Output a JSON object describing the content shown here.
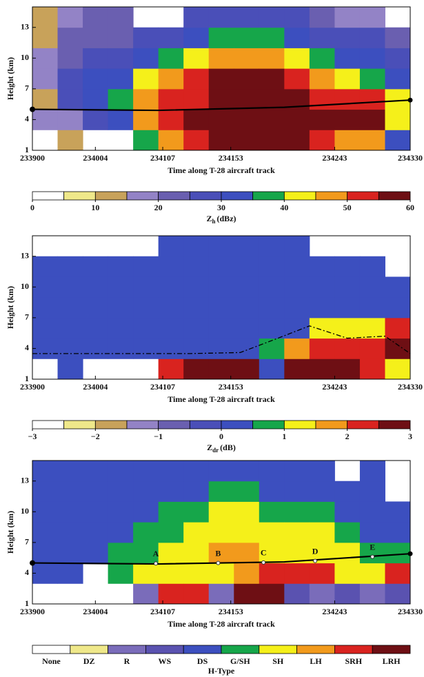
{
  "chart_data": [
    {
      "type": "heatmap",
      "ylabel": "Height (km)",
      "xlabel": "Time along T-28 aircraft track",
      "xlim": [
        0,
        60
      ],
      "xticks": [
        {
          "value": 0,
          "label": "233900"
        },
        {
          "value": 10,
          "label": "234004"
        },
        {
          "value": 20.7,
          "label": "234107"
        },
        {
          "value": 31.5,
          "label": "234153"
        },
        {
          "value": 48,
          "label": "234243"
        },
        {
          "value": 60,
          "label": "234330"
        }
      ],
      "ylim": [
        1,
        15
      ],
      "yticks": [
        1,
        4,
        7,
        10,
        13
      ],
      "xbins": [
        0,
        4,
        8,
        12,
        16,
        20,
        24,
        28,
        32,
        36,
        40,
        44,
        48,
        52,
        56,
        60
      ],
      "ybins": [
        1,
        3,
        5,
        7,
        9,
        11,
        13,
        15
      ],
      "z": [
        [
          null,
          15,
          10,
          15,
          15,
          10,
          10
        ],
        [
          10,
          15,
          25,
          25,
          20,
          20,
          15
        ],
        [
          null,
          25,
          30,
          30,
          25,
          20,
          20
        ],
        [
          null,
          30,
          35,
          30,
          25,
          20,
          20
        ],
        [
          35,
          45,
          45,
          40,
          30,
          25,
          null
        ],
        [
          45,
          50,
          50,
          45,
          35,
          25,
          null
        ],
        [
          50,
          55,
          50,
          50,
          40,
          30,
          25
        ],
        [
          55,
          58,
          58,
          55,
          45,
          35,
          25
        ],
        [
          58,
          58,
          58,
          55,
          45,
          35,
          25
        ],
        [
          58,
          58,
          58,
          55,
          45,
          35,
          25
        ],
        [
          55,
          58,
          55,
          50,
          40,
          30,
          25
        ],
        [
          50,
          55,
          50,
          45,
          35,
          25,
          20
        ],
        [
          45,
          55,
          50,
          40,
          30,
          25,
          15
        ],
        [
          45,
          58,
          50,
          35,
          30,
          25,
          15
        ],
        [
          30,
          40,
          40,
          30,
          25,
          20,
          null
        ]
      ],
      "levels": [
        0,
        5,
        10,
        15,
        20,
        25,
        30,
        35,
        40,
        45,
        50,
        55,
        60
      ],
      "colors": [
        "#ffffff",
        "#efe88a",
        "#c8a25a",
        "#9383c6",
        "#6a5fb0",
        "#4a4fb8",
        "#3c4fbf",
        "#16a64a",
        "#f5f01a",
        "#f29a1c",
        "#d9231f",
        "#6e0f14"
      ],
      "cbar_ticks": [
        0,
        10,
        20,
        30,
        40,
        50,
        60
      ],
      "colorbar_label": {
        "base": "Z",
        "sub": "h",
        "rest": "(dBz)"
      },
      "track": {
        "x": [
          0,
          20,
          40,
          60
        ],
        "y": [
          5,
          4.9,
          5.2,
          5.9
        ],
        "style": "solid"
      }
    },
    {
      "type": "heatmap",
      "ylabel": "Height (km)",
      "xlabel": "Time along T-28 aircraft track",
      "xlim": [
        0,
        60
      ],
      "xticks": [
        {
          "value": 0,
          "label": "233900"
        },
        {
          "value": 10,
          "label": "234004"
        },
        {
          "value": 20.7,
          "label": "234107"
        },
        {
          "value": 31.5,
          "label": "234153"
        },
        {
          "value": 48,
          "label": "234243"
        },
        {
          "value": 60,
          "label": "234330"
        }
      ],
      "ylim": [
        1,
        15
      ],
      "yticks": [
        1,
        4,
        7,
        10,
        13
      ],
      "xbins": [
        0,
        4,
        8,
        12,
        16,
        20,
        24,
        28,
        32,
        36,
        40,
        44,
        48,
        52,
        56,
        60
      ],
      "ybins": [
        1,
        3,
        5,
        7,
        9,
        11,
        13,
        15
      ],
      "z": [
        [
          null,
          0.2,
          0.2,
          0.2,
          0.2,
          0.2,
          null
        ],
        [
          0.2,
          0.2,
          0.2,
          0.2,
          0.2,
          0.2,
          null
        ],
        [
          null,
          0.2,
          0.2,
          0.2,
          0.2,
          0.2,
          null
        ],
        [
          null,
          0.2,
          0.2,
          0.2,
          0.2,
          0.2,
          null
        ],
        [
          null,
          0.2,
          0.2,
          0.2,
          0.2,
          0.2,
          null
        ],
        [
          2.2,
          0.2,
          0.2,
          0.2,
          0.2,
          0.2,
          0.2
        ],
        [
          2.8,
          0.2,
          0.2,
          0.2,
          0.2,
          0.2,
          0.2
        ],
        [
          2.8,
          0.2,
          0.2,
          0.2,
          0.2,
          0.2,
          0.2
        ],
        [
          2.6,
          0.2,
          0.2,
          0.2,
          0.2,
          0.2,
          0.2
        ],
        [
          0.2,
          0.8,
          0.2,
          0.2,
          0.2,
          0.2,
          0.2
        ],
        [
          2.8,
          1.8,
          0.2,
          0.2,
          0.2,
          0.2,
          0.2
        ],
        [
          2.8,
          2.2,
          1.2,
          0.2,
          0.2,
          0.2,
          null
        ],
        [
          2.8,
          2.2,
          1.2,
          0.2,
          0.2,
          0.2,
          null
        ],
        [
          2.4,
          2.0,
          1.2,
          0.2,
          0.2,
          0.2,
          null
        ],
        [
          1.4,
          2.8,
          2.2,
          0.2,
          0.2,
          null,
          null
        ]
      ],
      "levels": [
        -3,
        -2.5,
        -2,
        -1.5,
        -1,
        -0.5,
        0,
        0.5,
        1,
        1.5,
        2,
        2.5,
        3
      ],
      "colors": [
        "#ffffff",
        "#efe88a",
        "#c8a25a",
        "#9383c6",
        "#6a5fb0",
        "#4a4fb8",
        "#3c4fbf",
        "#16a64a",
        "#f5f01a",
        "#f29a1c",
        "#d9231f",
        "#6e0f14"
      ],
      "cbar_ticks": [
        {
          "value": -3,
          "label": "−3"
        },
        {
          "value": -2,
          "label": "−2"
        },
        {
          "value": -1,
          "label": "−1"
        },
        0,
        1,
        2,
        3
      ],
      "colorbar_label": {
        "base": "Z",
        "sub": "dr",
        "rest": "(dB)"
      },
      "track": {
        "x": [
          0,
          25,
          33,
          39,
          44,
          50,
          56,
          60
        ],
        "y": [
          3.5,
          3.5,
          3.6,
          5,
          6.2,
          5,
          5.2,
          3.5
        ],
        "style": "dashdot"
      }
    },
    {
      "type": "category_map",
      "ylabel": "Height (km)",
      "xlabel": "Time along T-28 aircraft track",
      "xlim": [
        0,
        60
      ],
      "xticks": [
        {
          "value": 0,
          "label": "233900"
        },
        {
          "value": 10,
          "label": "234004"
        },
        {
          "value": 20.7,
          "label": "234107"
        },
        {
          "value": 31.5,
          "label": "234153"
        },
        {
          "value": 48,
          "label": "234243"
        },
        {
          "value": 60,
          "label": "234330"
        }
      ],
      "ylim": [
        1,
        15
      ],
      "yticks": [
        1,
        4,
        7,
        10,
        13
      ],
      "xbins": [
        0,
        4,
        8,
        12,
        16,
        20,
        24,
        28,
        32,
        36,
        40,
        44,
        48,
        52,
        56,
        60
      ],
      "ybins": [
        1,
        3,
        5,
        7,
        9,
        11,
        13,
        15
      ],
      "z": [
        [
          null,
          4,
          4,
          4,
          4,
          4,
          4
        ],
        [
          null,
          4,
          4,
          4,
          4,
          4,
          4
        ],
        [
          null,
          null,
          4,
          4,
          4,
          4,
          4
        ],
        [
          null,
          5,
          5,
          4,
          4,
          4,
          4
        ],
        [
          2,
          6,
          5,
          5,
          4,
          4,
          4
        ],
        [
          8,
          6,
          6,
          5,
          5,
          4,
          4
        ],
        [
          8,
          6,
          6,
          6,
          5,
          4,
          4
        ],
        [
          2,
          6,
          7,
          6,
          6,
          5,
          4
        ],
        [
          9,
          7,
          7,
          6,
          6,
          5,
          4
        ],
        [
          9,
          8,
          6,
          6,
          5,
          4,
          4
        ],
        [
          3,
          8,
          6,
          6,
          5,
          4,
          4
        ],
        [
          2,
          8,
          6,
          6,
          5,
          4,
          4
        ],
        [
          3,
          6,
          6,
          5,
          4,
          4,
          null
        ],
        [
          2,
          6,
          5,
          4,
          4,
          4,
          4
        ],
        [
          3,
          8,
          5,
          4,
          4,
          null,
          null
        ]
      ],
      "categories": [
        "None",
        "DZ",
        "R",
        "WS",
        "DS",
        "G/SH",
        "SH",
        "LH",
        "SRH",
        "LRH"
      ],
      "colors": [
        "#ffffff",
        "#efe88a",
        "#7a6cba",
        "#5a52b0",
        "#3c4fbf",
        "#16a64a",
        "#f5f01a",
        "#f29a1c",
        "#d9231f",
        "#6e0f14"
      ],
      "colorbar_label": "H-Type",
      "track": {
        "x": [
          0,
          20,
          40,
          60
        ],
        "y": [
          5,
          4.9,
          5.1,
          5.9
        ],
        "style": "solid"
      },
      "points": {
        "labels": [
          "A",
          "B",
          "C",
          "D",
          "E"
        ],
        "x": [
          19.6,
          29.5,
          36.7,
          44.9,
          54
        ],
        "y": [
          4.95,
          5,
          5.05,
          5.2,
          5.6
        ]
      }
    }
  ]
}
